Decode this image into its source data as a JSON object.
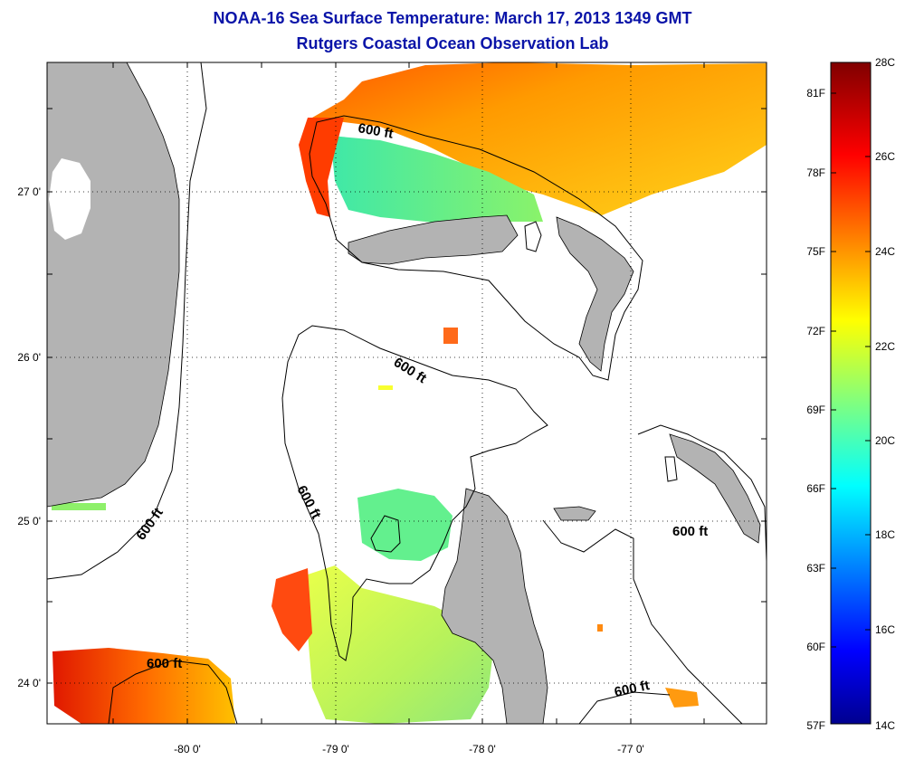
{
  "title": "NOAA-16 Sea Surface Temperature:  March 17, 2013 1349 GMT",
  "subtitle": "Rutgers Coastal Ocean Observation Lab",
  "map": {
    "lat_labels": [
      "27 0'",
      "26 0'",
      "25 0'",
      "24 0'"
    ],
    "lon_labels": [
      "-80 0'",
      "-79 0'",
      "-78 0'",
      "-77 0'"
    ],
    "contour_label": "600 ft",
    "colors": {
      "land": "#b3b3b3",
      "water": "#ffffff",
      "frame": "#000000"
    }
  },
  "colorbar": {
    "fahrenheit_labels": [
      "81F",
      "78F",
      "75F",
      "72F",
      "69F",
      "66F",
      "63F",
      "60F",
      "57F"
    ],
    "celsius_labels": [
      "28C",
      "26C",
      "24C",
      "22C",
      "20C",
      "18C",
      "16C",
      "14C"
    ],
    "colormap": "jet",
    "range_c": [
      14,
      28
    ]
  }
}
